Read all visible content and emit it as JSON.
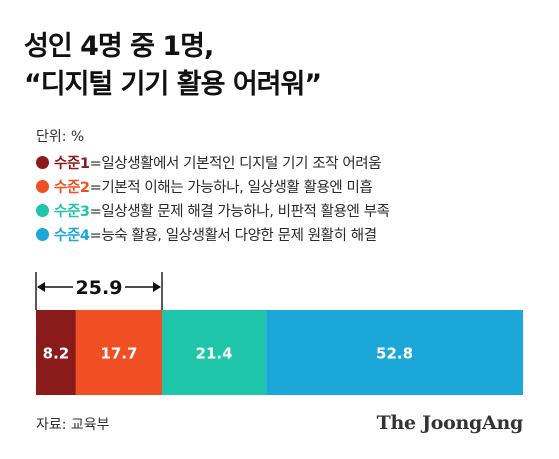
{
  "title": {
    "line1": "성인 4명 중 1명,",
    "line2": "“디지털 기기 활용 어려워”"
  },
  "unit_label": "단위: %",
  "legend": [
    {
      "level": "수준1",
      "desc": "=일상생활에서 기본적인 디지털 기기 조작 어려움",
      "color": "#8b1a1a"
    },
    {
      "level": "수준2",
      "desc": "=기본적 이해는 가능하나, 일상생활 활용엔 미흡",
      "color": "#f04e23"
    },
    {
      "level": "수준3",
      "desc": "=일상생활 문제 해결 가능하나, 비판적 활용엔 부족",
      "color": "#1fc5a8"
    },
    {
      "level": "수준4",
      "desc": "=능숙 활용, 일상생활서 다양한 문제 원활히 해결",
      "color": "#1ba8d8"
    }
  ],
  "chart_data": {
    "type": "bar",
    "orientation": "horizontal-stacked",
    "series": [
      {
        "name": "수준1",
        "value": 8.2,
        "label": "8.2",
        "color": "#8b1a1a"
      },
      {
        "name": "수준2",
        "value": 17.7,
        "label": "17.7",
        "color": "#f04e23"
      },
      {
        "name": "수준3",
        "value": 21.4,
        "label": "21.4",
        "color": "#1fc5a8"
      },
      {
        "name": "수준4",
        "value": 52.8,
        "label": "52.8",
        "color": "#1ba8d8"
      }
    ],
    "annotation": {
      "label": "25.9",
      "value": 25.9,
      "spans": [
        "수준1",
        "수준2"
      ]
    }
  },
  "source": "자료: 교육부",
  "logo": "The JoongAng"
}
